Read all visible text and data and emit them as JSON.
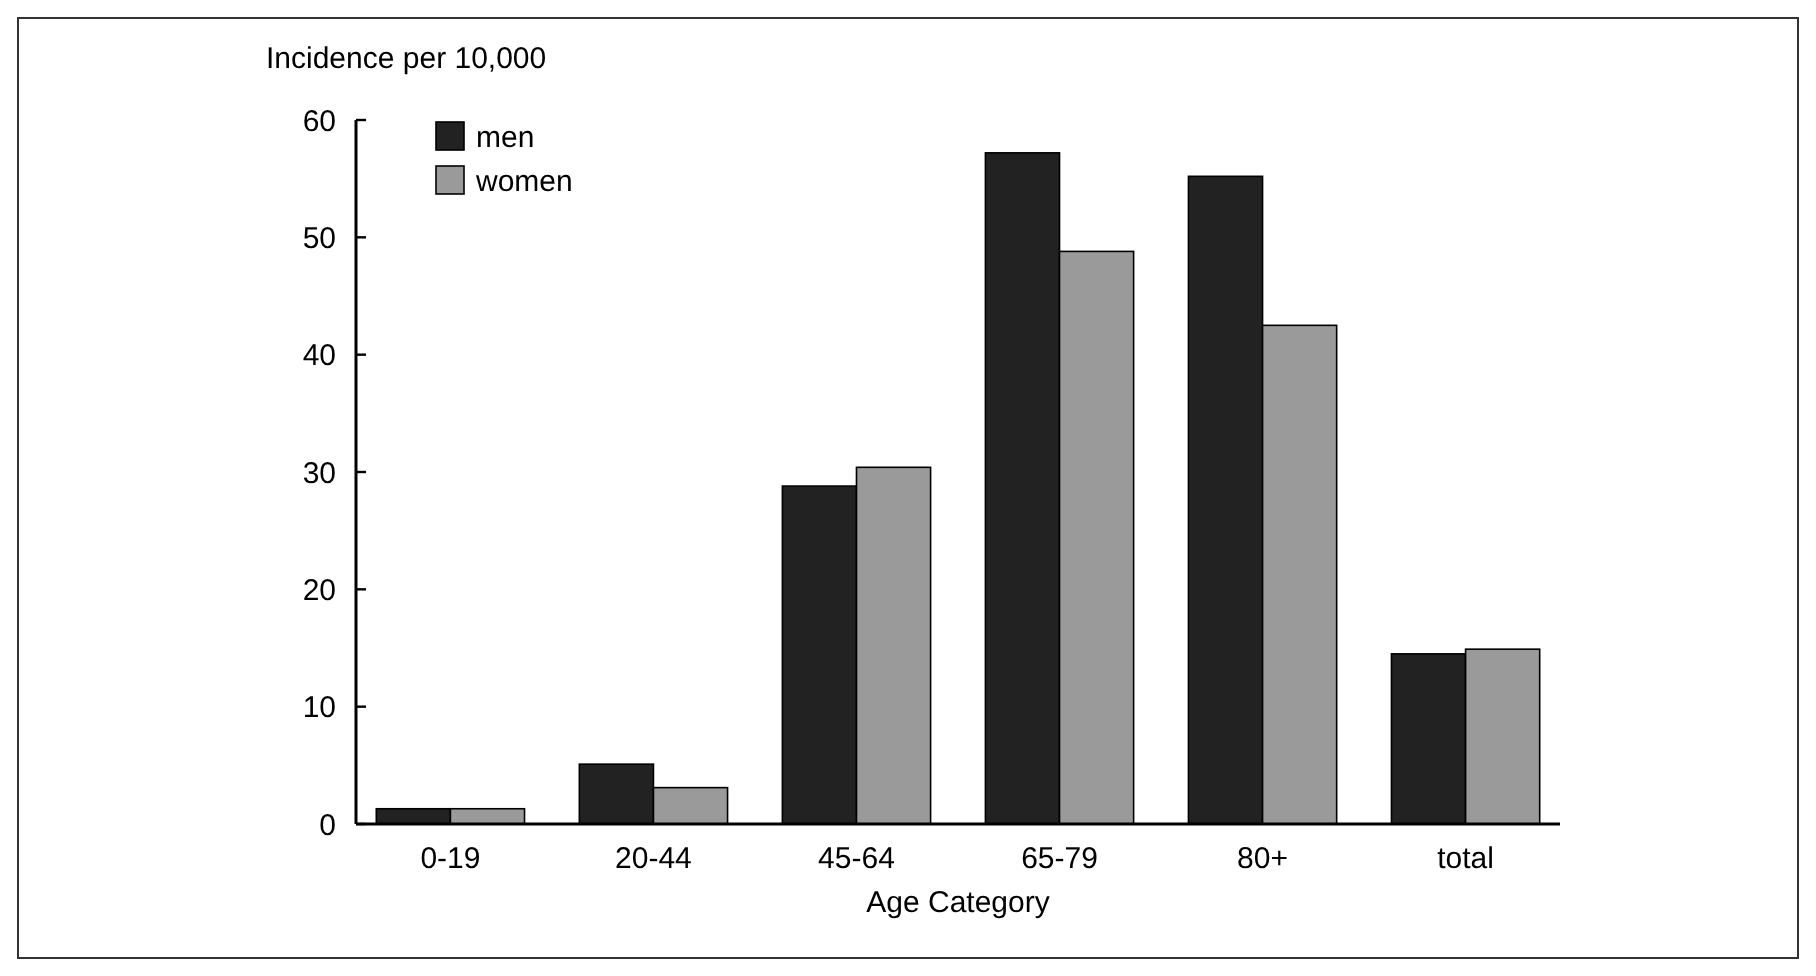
{
  "chart_data": {
    "type": "bar",
    "ylabel": "Incidence per 10,000",
    "xlabel": "Age Category",
    "categories": [
      "0-19",
      "20-44",
      "45-64",
      "65-79",
      "80+",
      "total"
    ],
    "series": [
      {
        "name": "men",
        "color": "#222222",
        "values": [
          1.3,
          5.1,
          28.8,
          57.2,
          55.2,
          14.5
        ]
      },
      {
        "name": "women",
        "color": "#9a9a9a",
        "values": [
          1.3,
          3.1,
          30.4,
          48.8,
          42.5,
          14.9
        ]
      }
    ],
    "ylim": [
      0,
      60
    ],
    "yticks": [
      0,
      10,
      20,
      30,
      40,
      50,
      60
    ],
    "legend": "top left",
    "grid": false
  }
}
